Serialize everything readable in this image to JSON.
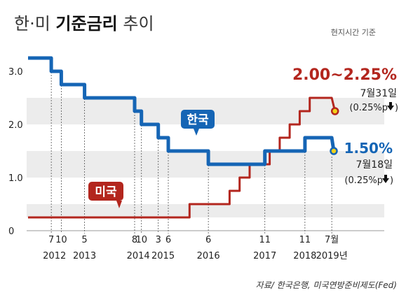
{
  "title_prefix": "한·미 ",
  "title_bold": "기준금리",
  "title_suffix": " 추이",
  "note": "현지시간 기준",
  "source": "자료/ 한국은행, 미국연방준비제도(Fed)",
  "colors": {
    "korea": "#1565b5",
    "us": "#b3261e",
    "band": "#ececec",
    "marker_fill": "#f2d21a"
  },
  "labels": {
    "korea": "한국",
    "us": "미국",
    "us_rate": "2.00~2.25%",
    "us_date": "7월31일",
    "us_change": "(0.25%p",
    "korea_rate": "1.50%",
    "korea_date": "7월18일",
    "korea_change": "(0.25%p",
    "down_icon": "arrow-down"
  },
  "chart_data": {
    "type": "line",
    "ylim": [
      0,
      3.4
    ],
    "yticks": [
      "0",
      "1.0",
      "2.0",
      "3.0"
    ],
    "x_month_ticks": [
      {
        "label": "7",
        "x": 2012.5
      },
      {
        "label": "10",
        "x": 2012.75
      },
      {
        "label": "5",
        "x": 2013.33
      },
      {
        "label": "8",
        "x": 2014.58
      },
      {
        "label": "10",
        "x": 2014.75
      },
      {
        "label": "3",
        "x": 2015.17
      },
      {
        "label": "6",
        "x": 2015.42
      },
      {
        "label": "6",
        "x": 2016.42
      },
      {
        "label": "11",
        "x": 2017.83
      },
      {
        "label": "11",
        "x": 2018.83
      },
      {
        "label": "7",
        "x": 2019.5
      }
    ],
    "month_suffix_last": "월",
    "x_year_labels": [
      {
        "label": "2012",
        "x": 2012.58
      },
      {
        "label": "2013",
        "x": 2013.33
      },
      {
        "label": "2014",
        "x": 2014.67
      },
      {
        "label": "2015",
        "x": 2015.29
      },
      {
        "label": "2016",
        "x": 2016.42
      },
      {
        "label": "2017",
        "x": 2017.83
      },
      {
        "label": "2018",
        "x": 2018.83
      },
      {
        "label": "2019",
        "x": 2019.5
      }
    ],
    "year_suffix_last": "년",
    "series": [
      {
        "name": "한국",
        "points": [
          [
            2011.92,
            3.25
          ],
          [
            2012.5,
            3.25
          ],
          [
            2012.5,
            3.0
          ],
          [
            2012.75,
            3.0
          ],
          [
            2012.75,
            2.75
          ],
          [
            2013.33,
            2.75
          ],
          [
            2013.33,
            2.5
          ],
          [
            2014.58,
            2.5
          ],
          [
            2014.58,
            2.25
          ],
          [
            2014.75,
            2.25
          ],
          [
            2014.75,
            2.0
          ],
          [
            2015.17,
            2.0
          ],
          [
            2015.17,
            1.75
          ],
          [
            2015.42,
            1.75
          ],
          [
            2015.42,
            1.5
          ],
          [
            2016.42,
            1.5
          ],
          [
            2016.42,
            1.25
          ],
          [
            2017.83,
            1.25
          ],
          [
            2017.83,
            1.5
          ],
          [
            2018.83,
            1.5
          ],
          [
            2018.83,
            1.75
          ],
          [
            2019.5,
            1.75
          ],
          [
            2019.55,
            1.5
          ]
        ]
      },
      {
        "name": "미국",
        "points": [
          [
            2011.92,
            0.25
          ],
          [
            2015.95,
            0.25
          ],
          [
            2015.95,
            0.5
          ],
          [
            2016.95,
            0.5
          ],
          [
            2016.95,
            0.75
          ],
          [
            2017.2,
            0.75
          ],
          [
            2017.2,
            1.0
          ],
          [
            2017.45,
            1.0
          ],
          [
            2017.45,
            1.25
          ],
          [
            2017.95,
            1.25
          ],
          [
            2017.95,
            1.5
          ],
          [
            2018.2,
            1.5
          ],
          [
            2018.2,
            1.75
          ],
          [
            2018.45,
            1.75
          ],
          [
            2018.45,
            2.0
          ],
          [
            2018.7,
            2.0
          ],
          [
            2018.7,
            2.25
          ],
          [
            2018.95,
            2.25
          ],
          [
            2018.95,
            2.5
          ],
          [
            2019.5,
            2.5
          ],
          [
            2019.58,
            2.25
          ]
        ]
      }
    ]
  }
}
